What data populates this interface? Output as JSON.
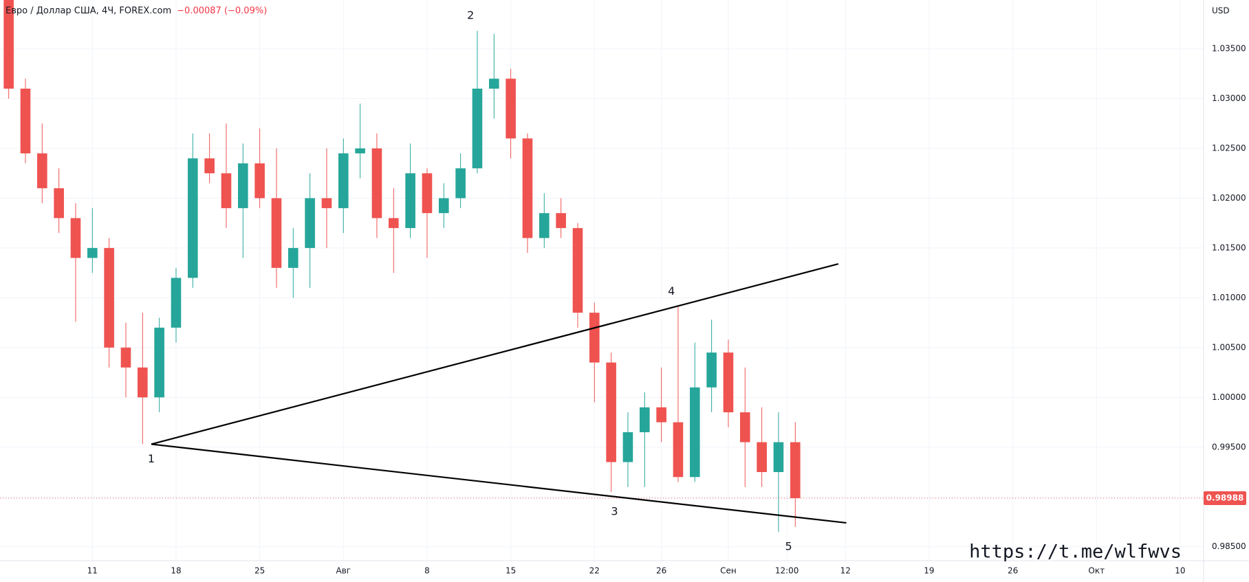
{
  "chart_data": {
    "type": "candlestick",
    "title": "Евро / Доллар США, 4Ч, FOREX.com",
    "change": "−0.00087 (−0.09%)",
    "currency": "USD",
    "watermark": "https://t.me/wlfwvs",
    "up_color": "#26a69a",
    "down_color": "#ef5350",
    "x": [
      -5,
      -4,
      -3,
      -2,
      -1,
      0,
      1,
      2,
      3,
      4,
      5,
      6,
      7,
      8,
      9,
      10,
      11,
      12,
      13,
      14,
      15,
      16,
      17,
      18,
      19,
      20,
      21,
      22,
      23,
      24,
      25,
      26,
      27,
      28,
      29,
      30,
      31,
      32,
      33,
      34,
      35,
      36,
      37,
      38,
      39,
      40,
      41,
      42
    ],
    "open": [
      1.0405,
      1.031,
      1.0245,
      1.021,
      1.018,
      1.014,
      1.015,
      1.005,
      1.003,
      1.0,
      1.007,
      1.012,
      1.024,
      1.0225,
      1.019,
      1.0235,
      1.02,
      1.013,
      1.015,
      1.02,
      1.019,
      1.0245,
      1.025,
      1.018,
      1.017,
      1.0225,
      1.0185,
      1.02,
      1.023,
      1.031,
      1.032,
      1.026,
      1.016,
      1.0185,
      1.017,
      1.0085,
      1.0035,
      0.9935,
      0.9965,
      0.999,
      0.9975,
      0.992,
      1.001,
      1.0045,
      0.9985,
      0.9955,
      0.9925,
      0.9955
    ],
    "high": [
      1.042,
      1.032,
      1.0275,
      1.023,
      1.0195,
      1.019,
      1.016,
      1.0075,
      1.0085,
      1.008,
      1.013,
      1.0265,
      1.0265,
      1.0275,
      1.0255,
      1.027,
      1.025,
      1.017,
      1.0225,
      1.025,
      1.026,
      1.0295,
      1.0265,
      1.021,
      1.0255,
      1.023,
      1.0215,
      1.0245,
      1.0368,
      1.0365,
      1.033,
      1.0265,
      1.0205,
      1.02,
      1.0175,
      1.0095,
      1.0045,
      0.9985,
      1.0005,
      1.003,
      1.0091,
      1.0055,
      1.0078,
      1.0058,
      1.003,
      0.999,
      0.9985,
      0.9975
    ],
    "low": [
      1.03,
      1.0235,
      1.0195,
      1.0165,
      1.0076,
      1.0125,
      1.003,
      1.0,
      0.9953,
      0.9985,
      1.0055,
      1.011,
      1.0215,
      1.017,
      1.014,
      1.019,
      1.011,
      1.01,
      1.011,
      1.015,
      1.0165,
      1.022,
      1.016,
      1.0125,
      1.016,
      1.014,
      1.017,
      1.019,
      1.0225,
      1.028,
      1.024,
      1.0145,
      1.015,
      1.016,
      1.007,
      0.9995,
      0.9905,
      0.991,
      0.991,
      0.9955,
      0.9915,
      0.9915,
      0.9985,
      0.997,
      0.991,
      0.991,
      0.9865,
      0.987
    ],
    "close": [
      1.031,
      1.0245,
      1.021,
      1.018,
      1.014,
      1.015,
      1.005,
      1.003,
      1.0,
      1.007,
      1.012,
      1.024,
      1.0225,
      1.019,
      1.0235,
      1.02,
      1.013,
      1.015,
      1.02,
      1.019,
      1.0245,
      1.025,
      1.018,
      1.017,
      1.0225,
      1.0185,
      1.02,
      1.023,
      1.031,
      1.032,
      1.026,
      1.016,
      1.0185,
      1.017,
      1.0085,
      1.0035,
      0.9935,
      0.9965,
      0.999,
      0.9975,
      0.992,
      1.001,
      1.0045,
      0.9985,
      0.9955,
      0.9925,
      0.9955,
      0.98988
    ],
    "xlim": [
      -5.52,
      66.4
    ],
    "xticks": [
      {
        "value": 0,
        "label": "11"
      },
      {
        "value": 5,
        "label": "18"
      },
      {
        "value": 10,
        "label": "25"
      },
      {
        "value": 15,
        "label": "Авг"
      },
      {
        "value": 20,
        "label": "8"
      },
      {
        "value": 25,
        "label": "15"
      },
      {
        "value": 30,
        "label": "22"
      },
      {
        "value": 34,
        "label": "26"
      },
      {
        "value": 38,
        "label": "Сен"
      },
      {
        "value": 41.5,
        "label": "12:00"
      },
      {
        "value": 45,
        "label": "12"
      },
      {
        "value": 50,
        "label": "19"
      },
      {
        "value": 55,
        "label": "26"
      },
      {
        "value": 60,
        "label": "Окт"
      },
      {
        "value": 65,
        "label": "10"
      }
    ],
    "ylim": [
      0.9836,
      1.0399
    ],
    "yticks": [
      {
        "value": 0.985,
        "label": "0.98500"
      },
      {
        "value": 0.99,
        "label": "0.99000"
      },
      {
        "value": 0.995,
        "label": "0.99500"
      },
      {
        "value": 1.0,
        "label": "1.00000"
      },
      {
        "value": 1.005,
        "label": "1.00500"
      },
      {
        "value": 1.01,
        "label": "1.01000"
      },
      {
        "value": 1.015,
        "label": "1.01500"
      },
      {
        "value": 1.02,
        "label": "1.02000"
      },
      {
        "value": 1.025,
        "label": "1.02500"
      },
      {
        "value": 1.03,
        "label": "1.03000"
      },
      {
        "value": 1.035,
        "label": "1.03500"
      }
    ],
    "grid": true,
    "last_price": 0.98988,
    "trendlines": [
      {
        "x": [
          3.52,
          44.57
        ],
        "y": [
          0.9953,
          1.0134
        ]
      },
      {
        "x": [
          3.52,
          45.05
        ],
        "y": [
          0.9953,
          0.9874
        ]
      }
    ],
    "annotations": [
      {
        "label": "1",
        "x": 3.52,
        "y": 0.9953,
        "position": "below"
      },
      {
        "label": "2",
        "x": 22.6,
        "y": 1.0368,
        "position": "above"
      },
      {
        "label": "3",
        "x": 31.2,
        "y": 0.99,
        "position": "below"
      },
      {
        "label": "4",
        "x": 34.6,
        "y": 1.0091,
        "position": "above"
      },
      {
        "label": "5",
        "x": 41.6,
        "y": 0.9865,
        "position": "below"
      }
    ]
  }
}
